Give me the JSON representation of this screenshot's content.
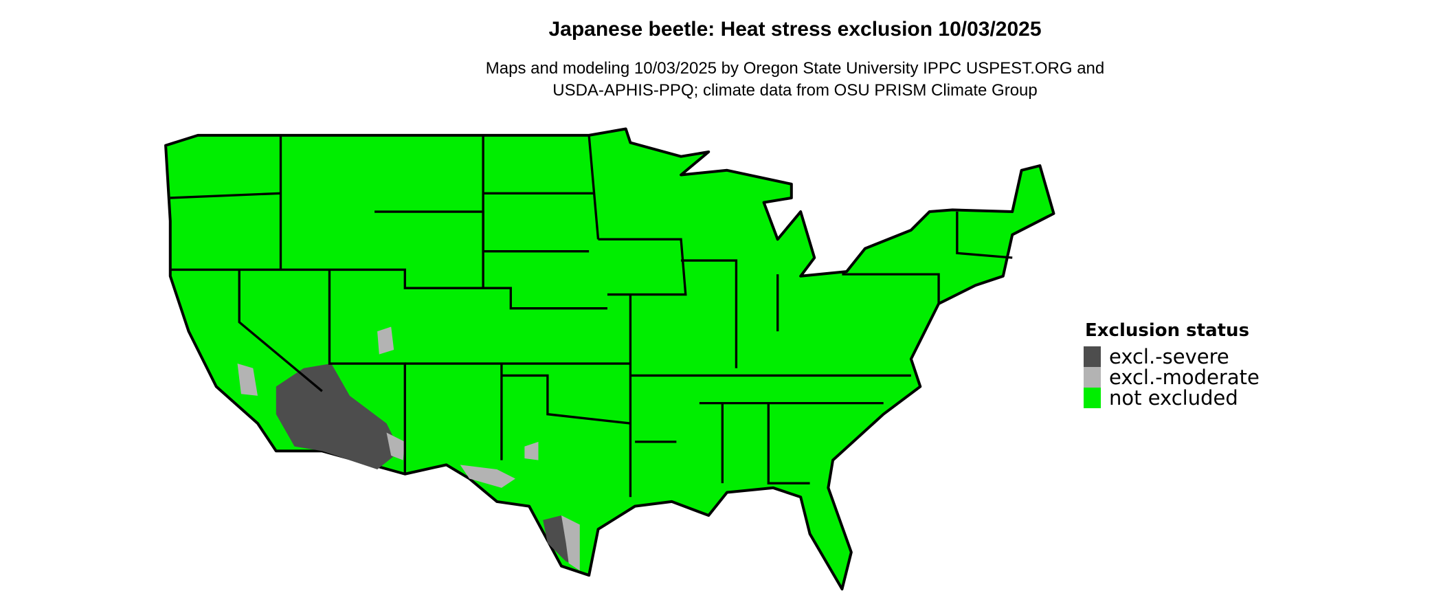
{
  "title": "Japanese beetle: Heat stress exclusion 10/03/2025",
  "subtitle_line1": "Maps and modeling 10/03/2025 by Oregon State University IPPC USPEST.ORG and",
  "subtitle_line2": "USDA-APHIS-PPQ; climate data from OSU PRISM Climate Group",
  "legend": {
    "title": "Exclusion status",
    "items": [
      {
        "label": "excl.-severe",
        "color": "#4d4d4d"
      },
      {
        "label": "excl.-moderate",
        "color": "#b3b3b3"
      },
      {
        "label": "not excluded",
        "color": "#00ee00"
      }
    ]
  }
}
